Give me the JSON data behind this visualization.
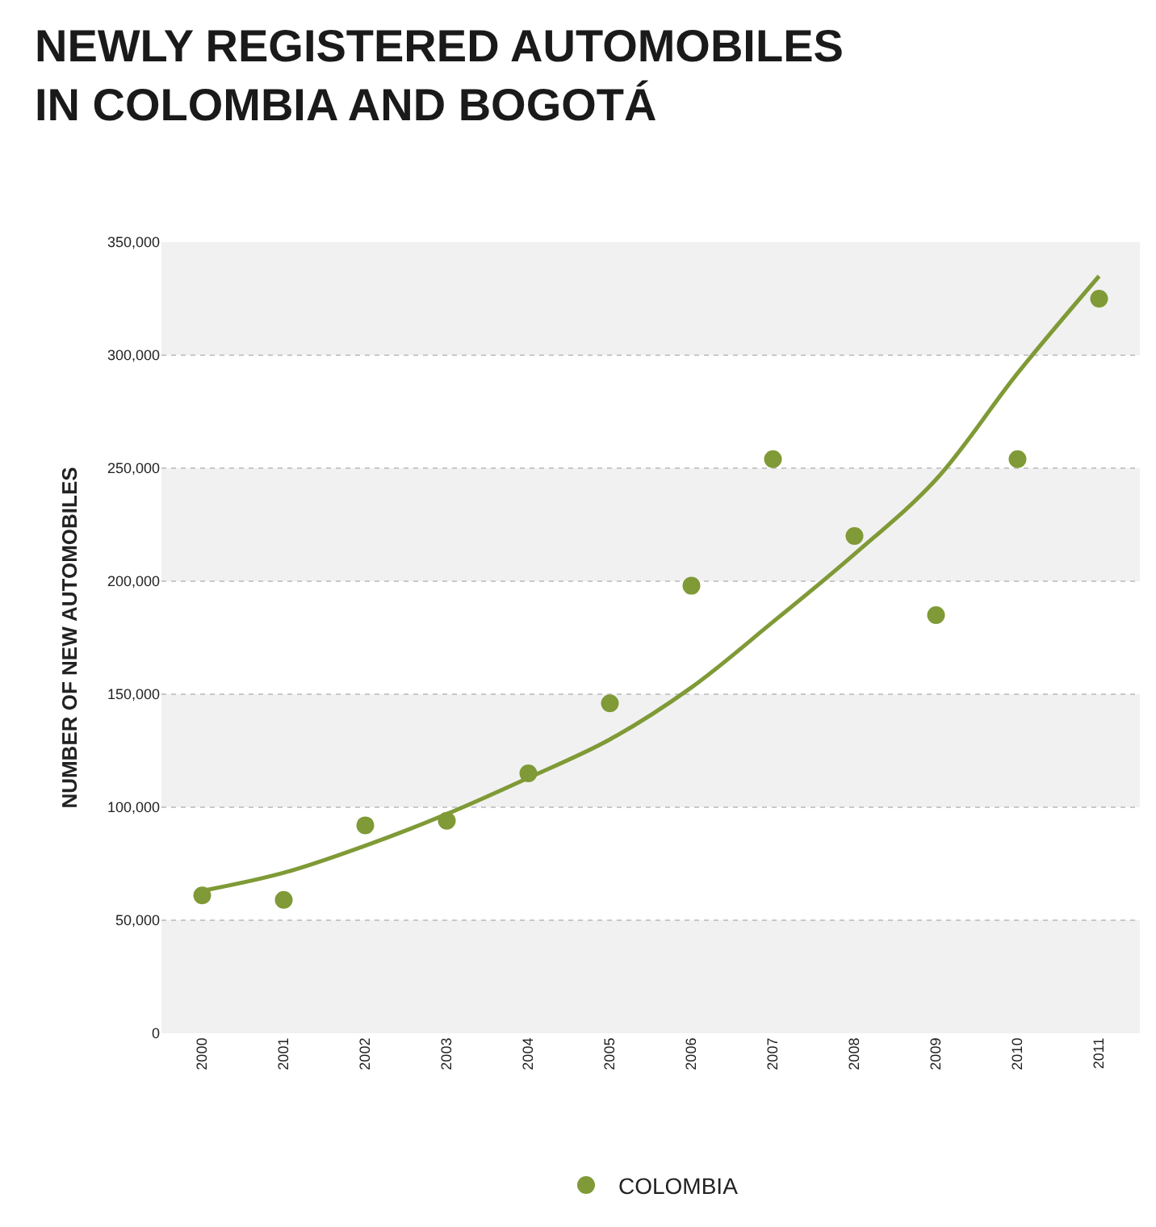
{
  "chart_data": {
    "type": "scatter",
    "title": "NEWLY REGISTERED AUTOMOBILES\nIN COLOMBIA AND BOGOTÁ",
    "ylabel": "NUMBER OF NEW AUTOMOBILES",
    "categories": [
      "2000",
      "2001",
      "2002",
      "2003",
      "2004",
      "2005",
      "2006",
      "2007",
      "2008",
      "2009",
      "2010",
      "2011"
    ],
    "series": [
      {
        "name": "COLOMBIA",
        "marker": "circle",
        "color": "#7f9a36",
        "values": [
          61000,
          59000,
          92000,
          94000,
          115000,
          146000,
          198000,
          254000,
          220000,
          185000,
          254000,
          325000
        ]
      },
      {
        "type": "line",
        "color": "#7f9a36",
        "values": [
          63000,
          71000,
          83000,
          97000,
          113000,
          130000,
          153000,
          182000,
          212000,
          245000,
          292000,
          335000
        ]
      }
    ],
    "ylim": [
      0,
      350000
    ],
    "yticks": [
      {
        "value": 0,
        "label": "0"
      },
      {
        "value": 50000,
        "label": "50,000"
      },
      {
        "value": 100000,
        "label": "100,000"
      },
      {
        "value": 150000,
        "label": "150,000"
      },
      {
        "value": 200000,
        "label": "200,000"
      },
      {
        "value": 250000,
        "label": "250,000"
      },
      {
        "value": 300000,
        "label": "300,000"
      },
      {
        "value": 350000,
        "label": "350,000"
      }
    ],
    "bands": [
      {
        "axis": "y",
        "from": 0,
        "to": 50000,
        "color": "#f1f1f1"
      },
      {
        "axis": "y",
        "from": 100000,
        "to": 150000,
        "color": "#f1f1f1"
      },
      {
        "axis": "y",
        "from": 200000,
        "to": 250000,
        "color": "#f1f1f1"
      },
      {
        "axis": "y",
        "from": 300000,
        "to": 350000,
        "color": "#f1f1f1"
      }
    ],
    "grid": "y",
    "legend": "bottom"
  }
}
